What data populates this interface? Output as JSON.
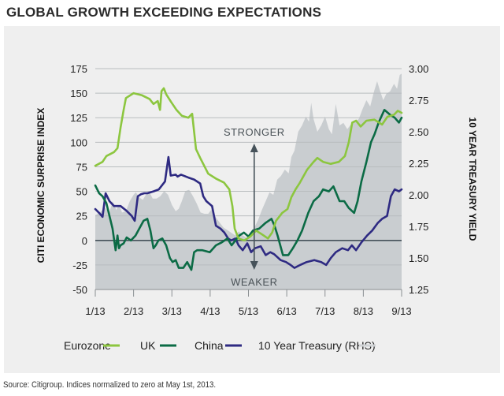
{
  "title": "GLOBAL GROWTH EXCEEDING EXPECTATIONS",
  "source": "Source: Citigroup. Indices normalized to zero at May 1st, 2013.",
  "colors": {
    "eurozone": "#8cc63f",
    "uk": "#0b6b45",
    "china": "#2e2a82",
    "treasury": "#c9cdd0",
    "treasury_legend": "#cfd2d4",
    "grid": "#b9bdbf",
    "zero_line": "#46525a",
    "arrow": "#46525a"
  },
  "chart_data": {
    "type": "line",
    "title": "GLOBAL GROWTH EXCEEDING EXPECTATIONS",
    "xlabel": "",
    "ylabel": "CITI ECONOMIC SURPRISE INDEX",
    "y2label": "10 YEAR TREASURY YIELD",
    "categories": [
      "1/13",
      "2/13",
      "3/13",
      "4/13",
      "5/13",
      "6/13",
      "7/13",
      "8/13",
      "9/13"
    ],
    "x_unit": "months since 1/13",
    "xlim": [
      0,
      8
    ],
    "ylim": [
      -50,
      175
    ],
    "y_ticks": [
      175,
      150,
      125,
      100,
      75,
      50,
      25,
      0,
      -25,
      -50
    ],
    "y2lim": [
      1.25,
      3.0
    ],
    "y2_ticks": [
      "3.00",
      "2.75",
      "2.50",
      "2.25",
      "2.00",
      "1.75",
      "1.50",
      "1.25"
    ],
    "grid": true,
    "legend": "bottom",
    "annotations": {
      "up": "STRONGER",
      "down": "WEAKER",
      "arrow_x": 4.15
    },
    "series": [
      {
        "name": "Eurozone",
        "key": "eurozone",
        "axis": "left",
        "x": [
          0,
          0.19,
          0.29,
          0.49,
          0.58,
          0.66,
          0.74,
          0.8,
          1.0,
          1.21,
          1.42,
          1.52,
          1.63,
          1.69,
          1.73,
          1.79,
          1.85,
          1.98,
          2.12,
          2.26,
          2.43,
          2.53,
          2.63,
          2.74,
          2.95,
          3.15,
          3.36,
          3.5,
          3.58,
          3.64,
          3.74,
          3.89,
          4.05,
          4.2,
          4.36,
          4.51,
          4.62,
          4.72,
          4.88,
          5.02,
          5.12,
          5.23,
          5.33,
          5.53,
          5.7,
          5.8,
          5.95,
          6.15,
          6.36,
          6.52,
          6.62,
          6.71,
          6.81,
          6.93,
          7.08,
          7.29,
          7.49,
          7.63,
          7.8,
          7.9,
          8.0
        ],
        "values": [
          76,
          80,
          86,
          90,
          94,
          115,
          133,
          145,
          150,
          148,
          144,
          139,
          142,
          133,
          152,
          155,
          149,
          141,
          133,
          127,
          125,
          129,
          93,
          84,
          68,
          63,
          59,
          52,
          35,
          12,
          2,
          0,
          4,
          10,
          6,
          2,
          8,
          20,
          28,
          32,
          44,
          52,
          58,
          72,
          80,
          84,
          80,
          78,
          80,
          86,
          100,
          120,
          122,
          116,
          122,
          123,
          118,
          126,
          128,
          132,
          130
        ]
      },
      {
        "name": "UK",
        "key": "uk",
        "axis": "left",
        "x": [
          0,
          0.1,
          0.19,
          0.29,
          0.37,
          0.45,
          0.53,
          0.58,
          0.62,
          0.66,
          0.74,
          0.82,
          0.93,
          1.05,
          1.15,
          1.26,
          1.36,
          1.44,
          1.52,
          1.58,
          1.65,
          1.75,
          1.85,
          1.95,
          2.02,
          2.1,
          2.18,
          2.3,
          2.4,
          2.51,
          2.58,
          2.66,
          2.8,
          2.99,
          3.15,
          3.3,
          3.45,
          3.56,
          3.66,
          3.76,
          3.88,
          4.0,
          4.12,
          4.28,
          4.45,
          4.6,
          4.68,
          4.76,
          4.9,
          5.04,
          5.16,
          5.28,
          5.4,
          5.56,
          5.7,
          5.84,
          5.95,
          6.1,
          6.22,
          6.38,
          6.5,
          6.62,
          6.76,
          6.85,
          6.95,
          7.08,
          7.2,
          7.29,
          7.4,
          7.55,
          7.7,
          7.82,
          7.93,
          8.0
        ],
        "values": [
          56,
          48,
          45,
          38,
          25,
          12,
          -10,
          5,
          -8,
          -5,
          -3,
          3,
          0,
          5,
          12,
          20,
          22,
          10,
          -8,
          -5,
          0,
          2,
          -5,
          -18,
          -22,
          -20,
          -28,
          -28,
          -22,
          -30,
          -12,
          -10,
          -10,
          -12,
          -5,
          -2,
          2,
          -5,
          0,
          5,
          8,
          4,
          10,
          12,
          18,
          22,
          15,
          5,
          -15,
          -15,
          -8,
          0,
          10,
          28,
          40,
          45,
          52,
          50,
          55,
          40,
          40,
          33,
          28,
          40,
          60,
          80,
          100,
          108,
          120,
          133,
          128,
          125,
          120,
          125
        ]
      },
      {
        "name": "China",
        "key": "china",
        "axis": "left",
        "x": [
          0,
          0.1,
          0.19,
          0.27,
          0.37,
          0.49,
          0.66,
          0.82,
          0.95,
          1.03,
          1.11,
          1.19,
          1.28,
          1.36,
          1.52,
          1.66,
          1.82,
          1.91,
          1.97,
          2.1,
          2.15,
          2.24,
          2.43,
          2.58,
          2.74,
          2.82,
          2.9,
          3.05,
          3.15,
          3.27,
          3.37,
          3.47,
          3.55,
          3.66,
          3.74,
          3.85,
          3.97,
          4.07,
          4.17,
          4.32,
          4.45,
          4.57,
          4.67,
          4.84,
          4.98,
          5.1,
          5.2,
          5.35,
          5.52,
          5.72,
          5.9,
          6.03,
          6.15,
          6.28,
          6.45,
          6.6,
          6.7,
          6.81,
          6.95,
          7.1,
          7.23,
          7.38,
          7.49,
          7.62,
          7.72,
          7.82,
          7.93,
          8.0
        ],
        "values": [
          32,
          28,
          24,
          48,
          40,
          35,
          35,
          30,
          25,
          20,
          45,
          47,
          48,
          48,
          50,
          52,
          60,
          85,
          66,
          67,
          65,
          67,
          64,
          62,
          58,
          45,
          40,
          35,
          15,
          12,
          8,
          2,
          0,
          2,
          -5,
          -10,
          -3,
          -12,
          -8,
          -6,
          -15,
          -12,
          -14,
          -20,
          -22,
          -25,
          -28,
          -25,
          -22,
          -20,
          -22,
          -25,
          -18,
          -12,
          -8,
          -10,
          -5,
          -10,
          -2,
          5,
          10,
          18,
          22,
          25,
          45,
          52,
          50,
          52
        ]
      },
      {
        "name": "10 Year Treasury (RHS)",
        "key": "treasury",
        "axis": "right",
        "type": "area",
        "x": [
          0,
          0.12,
          0.25,
          0.37,
          0.45,
          0.55,
          0.62,
          0.7,
          0.8,
          0.9,
          1.0,
          1.06,
          1.15,
          1.24,
          1.32,
          1.4,
          1.5,
          1.6,
          1.7,
          1.8,
          1.9,
          2.0,
          2.1,
          2.18,
          2.26,
          2.35,
          2.45,
          2.55,
          2.65,
          2.75,
          2.85,
          2.95,
          3.05,
          3.15,
          3.25,
          3.35,
          3.45,
          3.55,
          3.65,
          3.75,
          3.85,
          3.95,
          4.05,
          4.15,
          4.25,
          4.35,
          4.45,
          4.55,
          4.65,
          4.75,
          4.85,
          4.95,
          5.05,
          5.12,
          5.2,
          5.3,
          5.4,
          5.5,
          5.58,
          5.64,
          5.7,
          5.8,
          5.9,
          6.0,
          6.1,
          6.18,
          6.28,
          6.38,
          6.48,
          6.58,
          6.68,
          6.78,
          6.88,
          6.98,
          7.08,
          7.18,
          7.28,
          7.36,
          7.44,
          7.52,
          7.6,
          7.7,
          7.8,
          7.88,
          7.95,
          8.0
        ],
        "values": [
          1.84,
          1.86,
          1.9,
          1.86,
          1.95,
          1.88,
          1.92,
          1.86,
          1.87,
          1.95,
          2.0,
          2.02,
          1.98,
          1.96,
          2.0,
          2.03,
          1.97,
          1.97,
          1.99,
          2.03,
          2.0,
          1.92,
          1.87,
          1.89,
          1.95,
          2.03,
          2.04,
          1.99,
          1.93,
          1.86,
          1.85,
          1.85,
          1.89,
          1.82,
          1.78,
          1.74,
          1.72,
          1.7,
          1.68,
          1.71,
          1.68,
          1.66,
          1.7,
          1.74,
          1.8,
          1.88,
          1.95,
          2.02,
          2.0,
          2.12,
          2.15,
          2.2,
          2.17,
          2.3,
          2.35,
          2.5,
          2.55,
          2.62,
          2.58,
          2.73,
          2.6,
          2.5,
          2.55,
          2.62,
          2.52,
          2.48,
          2.72,
          2.55,
          2.57,
          2.52,
          2.56,
          2.58,
          2.6,
          2.68,
          2.75,
          2.7,
          2.82,
          2.9,
          2.82,
          2.75,
          2.8,
          2.82,
          2.88,
          2.84,
          2.95,
          2.96
        ]
      }
    ]
  },
  "legend": [
    {
      "label": "Eurozone",
      "key": "eurozone"
    },
    {
      "label": "UK",
      "key": "uk"
    },
    {
      "label": "China",
      "key": "china"
    },
    {
      "label": "10 Year Treasury (RHS)",
      "key": "treasury"
    }
  ]
}
